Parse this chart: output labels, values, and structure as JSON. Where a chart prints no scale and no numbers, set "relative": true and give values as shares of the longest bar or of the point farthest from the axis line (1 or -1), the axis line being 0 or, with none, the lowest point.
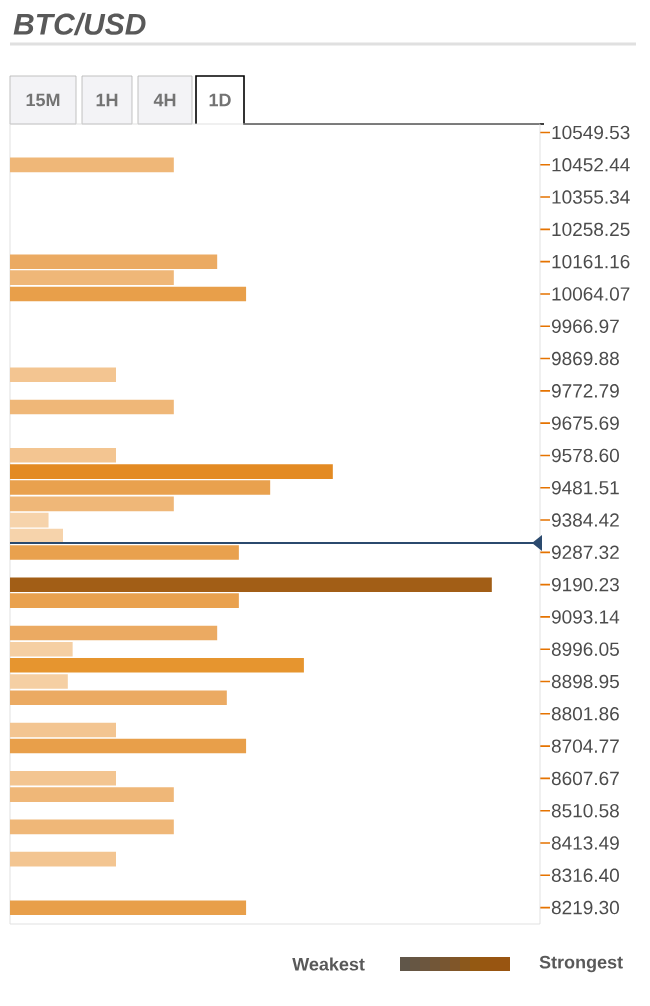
{
  "chart_data": {
    "type": "bar",
    "orientation": "horizontal",
    "relative": true,
    "title": "BTC/USD",
    "annotations": [
      "15M",
      "1H",
      "4H",
      "1D",
      "Weakest",
      "Strongest"
    ],
    "x": [
      10452,
      10161,
      10113,
      10064,
      9821,
      9724,
      9579,
      9530,
      9482,
      9433,
      9384,
      9336,
      9287,
      9190,
      9142,
      9045,
      8996,
      8948,
      8899,
      8850,
      8753,
      8705,
      8608,
      8559,
      8462,
      8365,
      8219
    ],
    "values": [
      0.34,
      0.43,
      0.34,
      0.49,
      0.22,
      0.34,
      0.22,
      0.67,
      0.54,
      0.34,
      0.08,
      0.11,
      0.475,
      1.0,
      0.475,
      0.43,
      0.13,
      0.61,
      0.12,
      0.45,
      0.22,
      0.49,
      0.22,
      0.34,
      0.34,
      0.22,
      0.49
    ],
    "colors": [
      "#efb778",
      "#ebaa62",
      "#efb778",
      "#e89f4a",
      "#f3c591",
      "#efb778",
      "#f3c591",
      "#e38a22",
      "#e9a14e",
      "#efb778",
      "#f6d3ab",
      "#f6d3ab",
      "#e9a14e",
      "#a25e16",
      "#e9a14e",
      "#ebaa62",
      "#f5cfa3",
      "#e6952f",
      "#f5cfa3",
      "#ebaa62",
      "#f3c591",
      "#e89f4a",
      "#f3c591",
      "#efb778",
      "#efb778",
      "#f3c591",
      "#e89f4a"
    ],
    "ylim": [
      8170,
      10575
    ],
    "yticks": [
      10549.53,
      10452.44,
      10355.34,
      10258.25,
      10161.16,
      10064.07,
      9966.97,
      9869.88,
      9772.79,
      {
        "value": 9675.69,
        "label": "9675.69"
      },
      {
        "value": 9578.6,
        "label": "9578.60"
      },
      9481.51,
      9384.42,
      9287.32,
      9190.23,
      9093.14,
      8996.05,
      8898.95,
      8801.86,
      8704.77,
      8607.67,
      8510.58,
      8413.49,
      {
        "value": 8316.4,
        "label": "8316.40"
      },
      {
        "value": 8219.3,
        "label": "8219.30"
      }
    ],
    "ref_lines": [
      {
        "axis": "y",
        "value": 9315,
        "color": "#2b4a6e"
      }
    ]
  }
}
